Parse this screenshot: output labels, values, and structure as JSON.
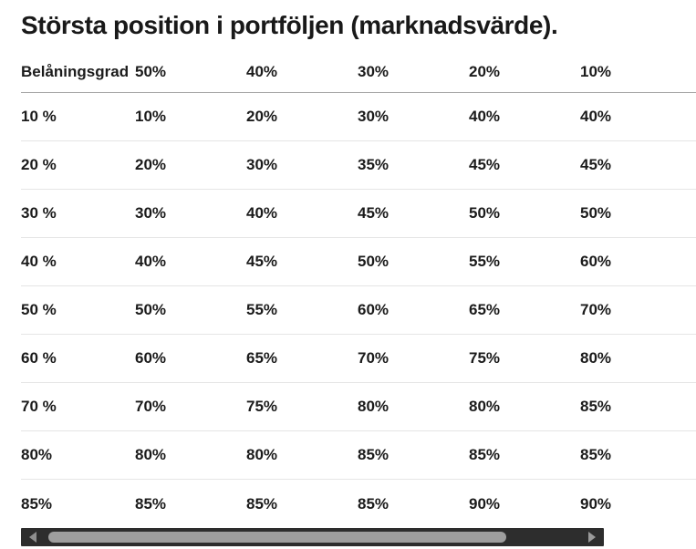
{
  "title": "Största position i portföljen (marknadsvärde).",
  "colors": {
    "text": "#1b1b1b",
    "header_divider": "#a3a3a3",
    "row_divider": "#e5e5e5",
    "scrollbar_track": "#2d2d2d",
    "scrollbar_thumb": "#9e9e9e",
    "scrollbar_arrow": "#8f8f8f"
  },
  "chart_data": {
    "type": "table",
    "title": "Största position i portföljen (marknadsvärde).",
    "columns": [
      "Belåningsgrad",
      "50%",
      "40%",
      "30%",
      "20%",
      "10%"
    ],
    "rows": [
      [
        "10 %",
        "10%",
        "20%",
        "30%",
        "40%",
        "40%"
      ],
      [
        "20 %",
        "20%",
        "30%",
        "35%",
        "45%",
        "45%"
      ],
      [
        "30 %",
        "30%",
        "40%",
        "45%",
        "50%",
        "50%"
      ],
      [
        "40 %",
        "40%",
        "45%",
        "50%",
        "55%",
        "60%"
      ],
      [
        "50 %",
        "50%",
        "55%",
        "60%",
        "65%",
        "70%"
      ],
      [
        "60 %",
        "60%",
        "65%",
        "70%",
        "75%",
        "80%"
      ],
      [
        "70 %",
        "70%",
        "75%",
        "80%",
        "80%",
        "85%"
      ],
      [
        "80%",
        "80%",
        "80%",
        "85%",
        "85%",
        "85%"
      ],
      [
        "85%",
        "85%",
        "85%",
        "85%",
        "90%",
        "90%"
      ]
    ]
  },
  "scrollbar": {
    "left_arrow_icon": "scroll-left-icon",
    "right_arrow_icon": "scroll-right-icon"
  }
}
